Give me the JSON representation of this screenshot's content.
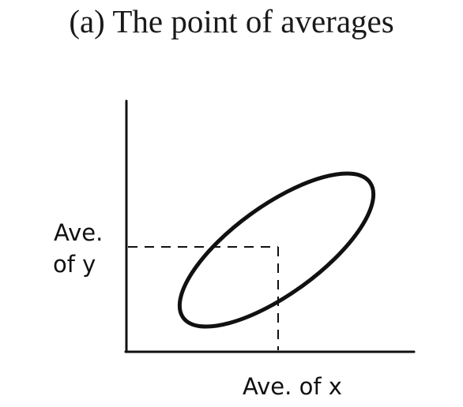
{
  "title": "(a) The point of averages",
  "labels": {
    "ave_y_line1": "Ave.",
    "ave_y_line2": "of y",
    "ave_x": "Ave. of x"
  },
  "colors": {
    "ink": "#111111",
    "background": "#ffffff"
  }
}
